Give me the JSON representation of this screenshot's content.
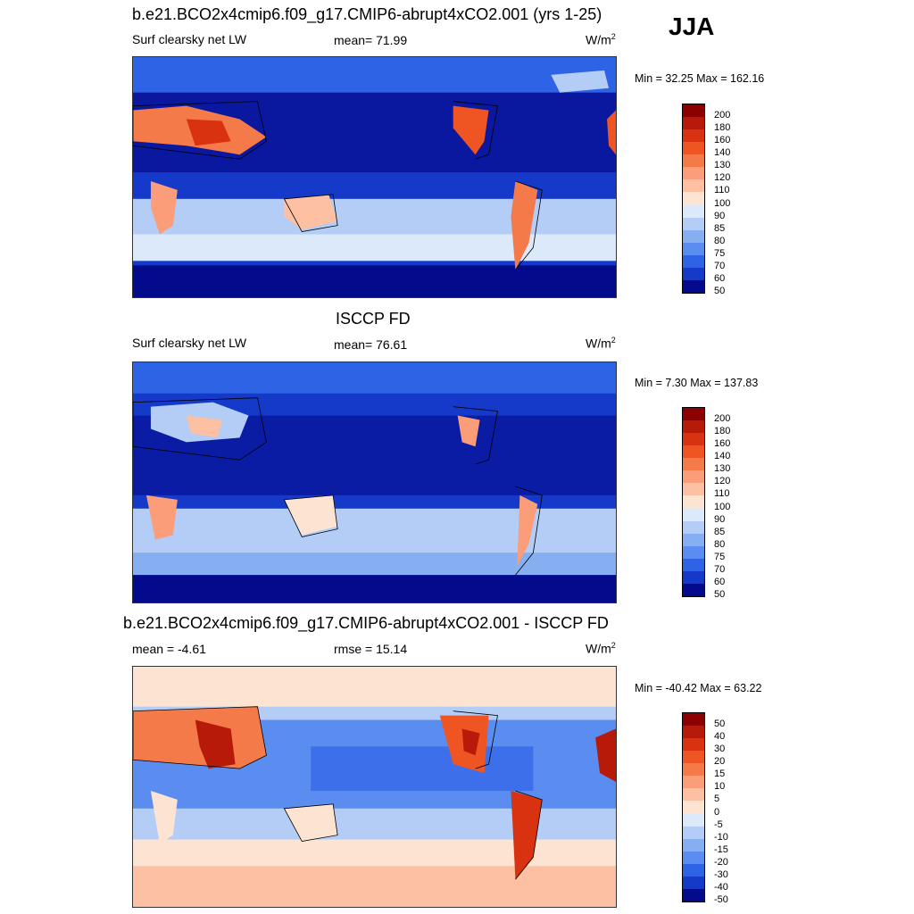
{
  "season": "JJA",
  "panels": [
    {
      "title": "b.e21.BCO2x4cmip6.f09_g17.CMIP6-abrupt4xCO2.001 (yrs 1-25)",
      "variable": "Surf clearsky net LW",
      "stat": "mean=  71.99",
      "units": "W/m",
      "units_sup": "2",
      "minmax": "Min =  32.25 Max = 162.16",
      "colorbar_levels": [
        "200",
        "180",
        "160",
        "140",
        "130",
        "120",
        "110",
        "100",
        "90",
        "85",
        "80",
        "75",
        "70",
        "60",
        "50"
      ]
    },
    {
      "title": "ISCCP FD",
      "variable": "Surf clearsky net LW",
      "stat": "mean=  76.61",
      "units": "W/m",
      "units_sup": "2",
      "minmax": "Min =   7.30 Max = 137.83",
      "colorbar_levels": [
        "200",
        "180",
        "160",
        "140",
        "130",
        "120",
        "110",
        "100",
        "90",
        "85",
        "80",
        "75",
        "70",
        "60",
        "50"
      ]
    },
    {
      "title": "b.e21.BCO2x4cmip6.f09_g17.CMIP6-abrupt4xCO2.001 - ISCCP FD",
      "stat": "mean =  -4.61",
      "stat2": "rmse =  15.14",
      "units": "W/m",
      "units_sup": "2",
      "minmax": "Min = -40.42 Max =  63.22",
      "colorbar_levels": [
        "50",
        "40",
        "30",
        "20",
        "15",
        "10",
        "5",
        "0",
        "-5",
        "-10",
        "-15",
        "-20",
        "-30",
        "-40",
        "-50"
      ]
    }
  ],
  "colors": {
    "scale": [
      "#8b0000",
      "#b81a0a",
      "#d83210",
      "#ee5522",
      "#f57a4a",
      "#fb9d78",
      "#fdc0a2",
      "#fde4d2",
      "#dbe9fb",
      "#b3cdf7",
      "#86aff2",
      "#5b8cf0",
      "#2f63e6",
      "#1539c9",
      "#040a8c"
    ],
    "ocean_model": "#0b2ab8",
    "ocean_deep": "#03148a",
    "ocean_diff": "#5b8cf0",
    "coast": "#000000"
  }
}
